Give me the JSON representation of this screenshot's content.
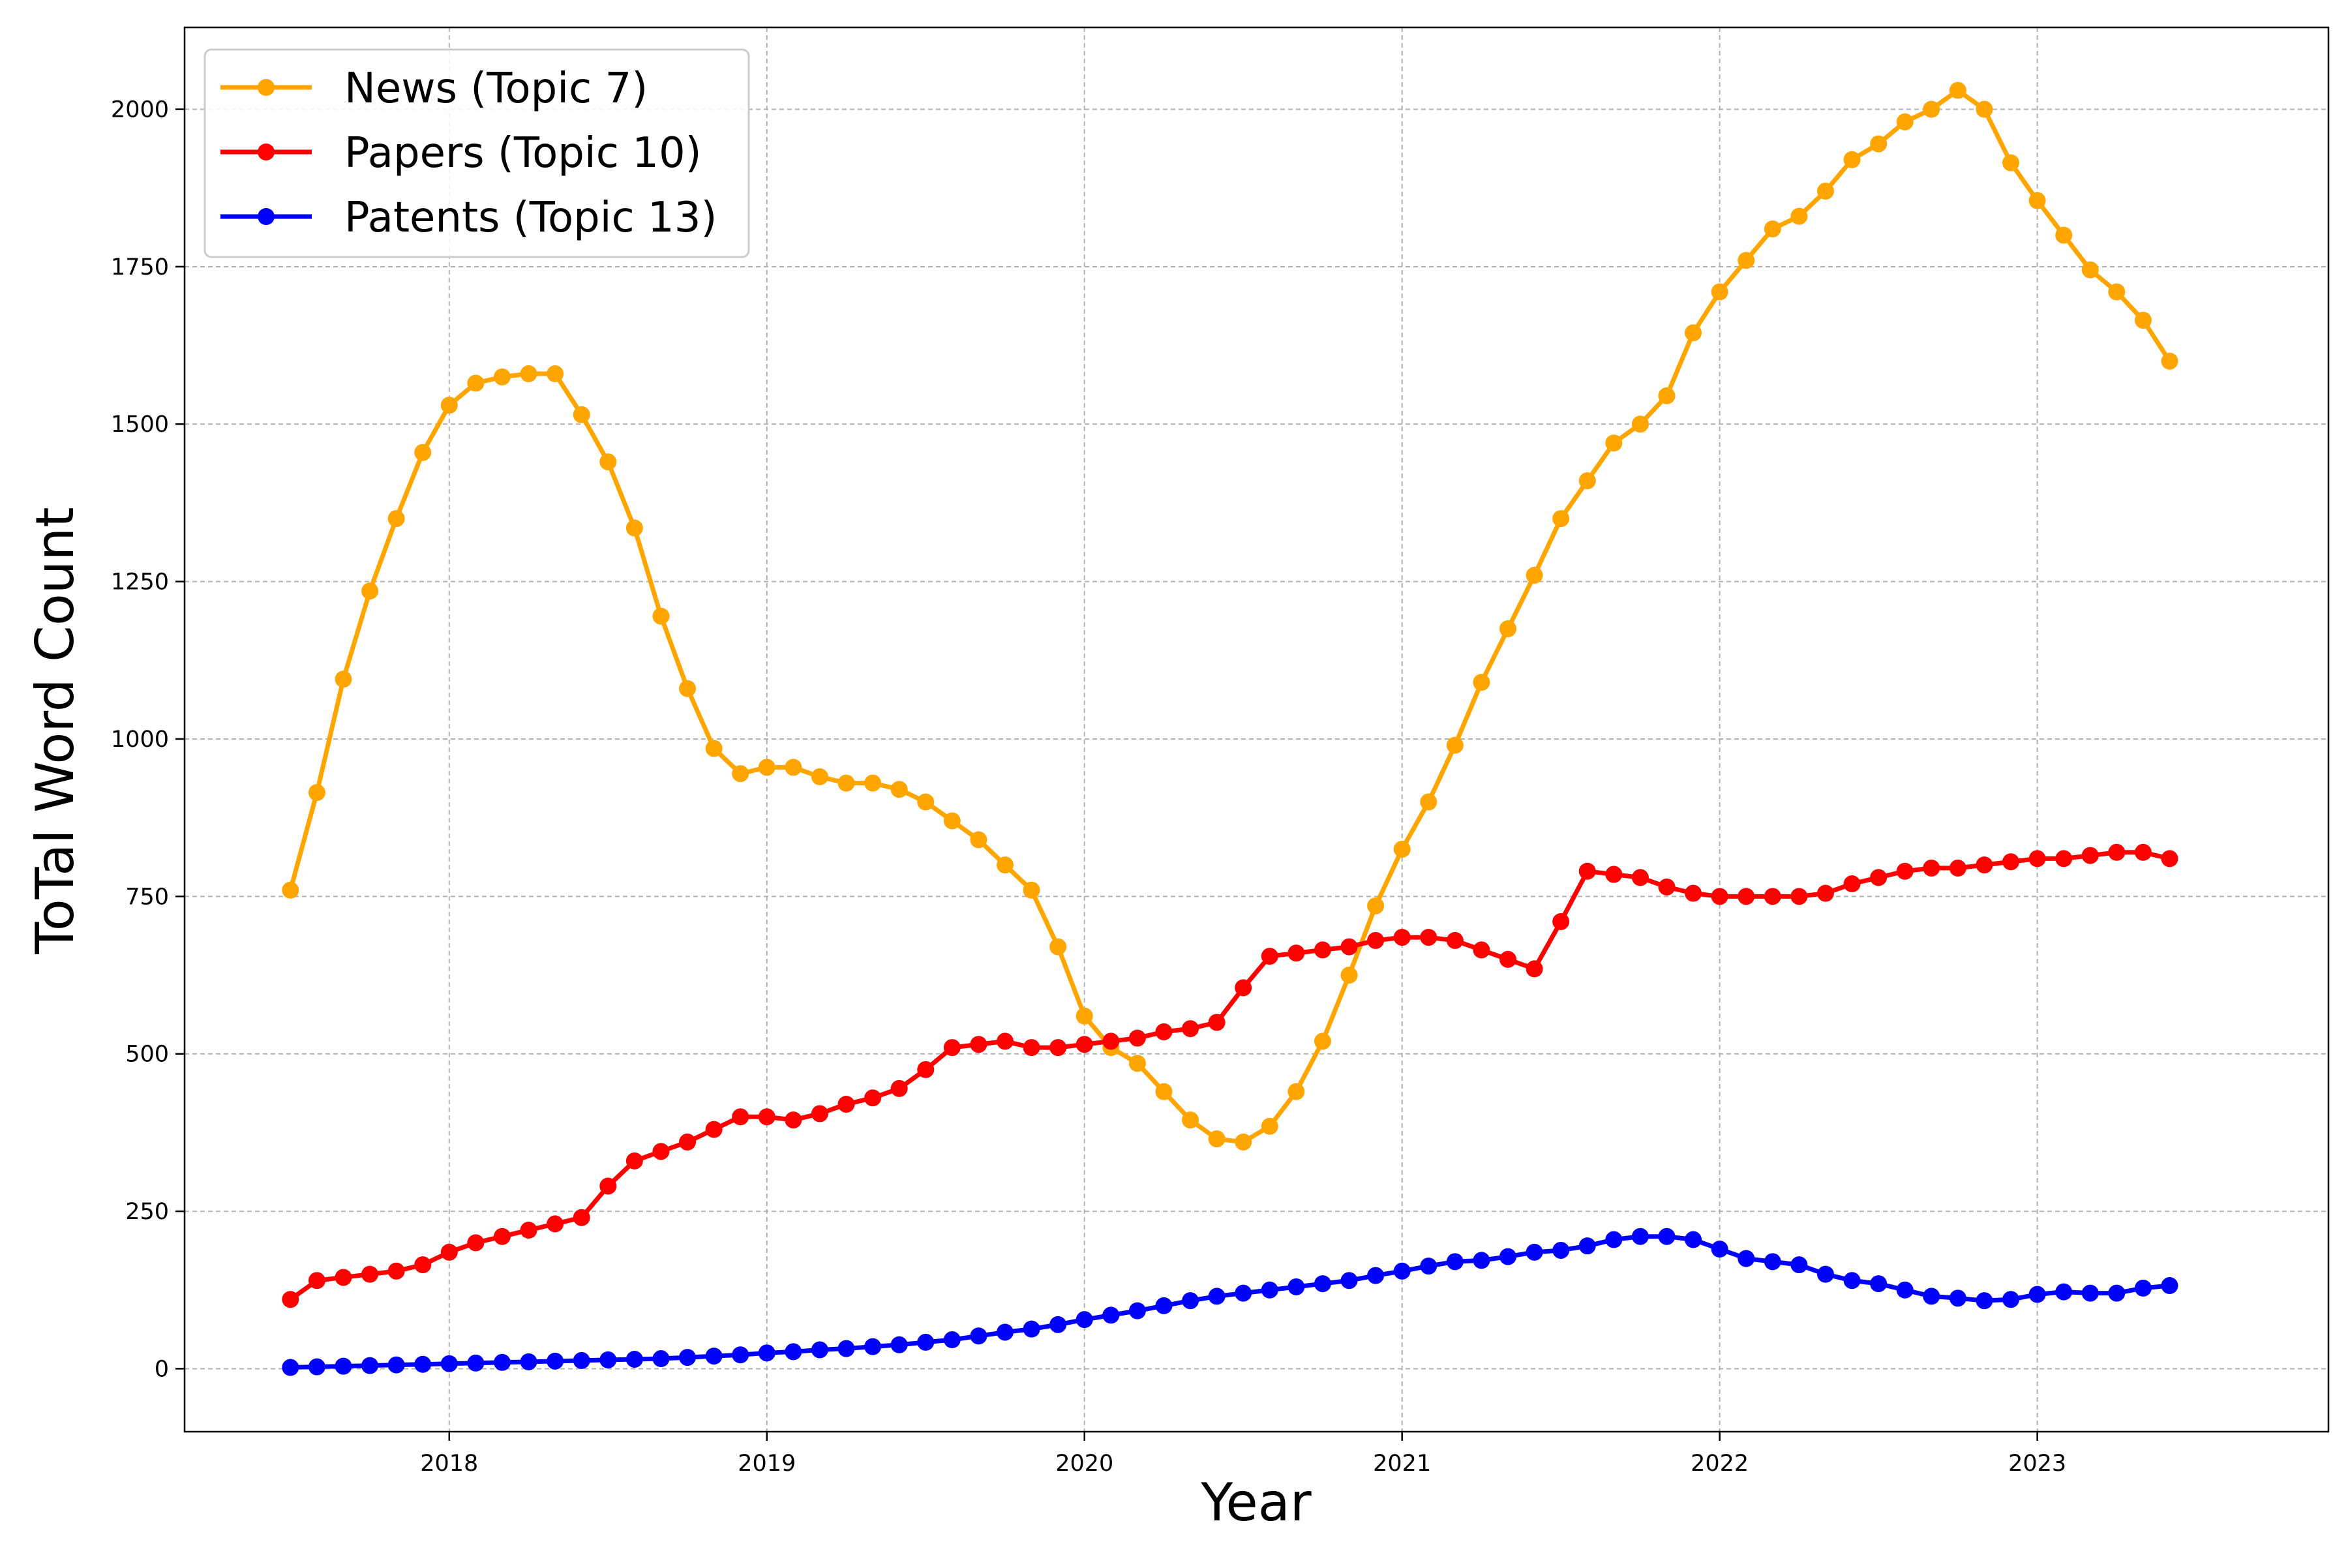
{
  "chart_data": {
    "type": "line",
    "title": "",
    "xlabel": "Year",
    "ylabel": "ToTal Word Count",
    "x_ticks": [
      "2018",
      "2019",
      "2020",
      "2021",
      "2022",
      "2023"
    ],
    "y_ticks": [
      "0",
      "250",
      "500",
      "750",
      "1000",
      "1250",
      "1500",
      "1750",
      "2000"
    ],
    "xlim": [
      "2017-03",
      "2023-12"
    ],
    "ylim": [
      -100,
      2130
    ],
    "grid": true,
    "legend_position": "top-left",
    "x": [
      "2017-07",
      "2017-08",
      "2017-09",
      "2017-10",
      "2017-11",
      "2017-12",
      "2018-01",
      "2018-02",
      "2018-03",
      "2018-04",
      "2018-05",
      "2018-06",
      "2018-07",
      "2018-08",
      "2018-09",
      "2018-10",
      "2018-11",
      "2018-12",
      "2019-01",
      "2019-02",
      "2019-03",
      "2019-04",
      "2019-05",
      "2019-06",
      "2019-07",
      "2019-08",
      "2019-09",
      "2019-10",
      "2019-11",
      "2019-12",
      "2020-01",
      "2020-02",
      "2020-03",
      "2020-04",
      "2020-05",
      "2020-06",
      "2020-07",
      "2020-08",
      "2020-09",
      "2020-10",
      "2020-11",
      "2020-12",
      "2021-01",
      "2021-02",
      "2021-03",
      "2021-04",
      "2021-05",
      "2021-06",
      "2021-07",
      "2021-08",
      "2021-09",
      "2021-10",
      "2021-11",
      "2021-12",
      "2022-01",
      "2022-02",
      "2022-03",
      "2022-04",
      "2022-05",
      "2022-06",
      "2022-07",
      "2022-08",
      "2022-09",
      "2022-10",
      "2022-11",
      "2022-12",
      "2023-01",
      "2023-02",
      "2023-03",
      "2023-04",
      "2023-05",
      "2023-06"
    ],
    "series": [
      {
        "name": "News (Topic 7)",
        "color": "#FFA500",
        "values": [
          760,
          915,
          1095,
          1235,
          1350,
          1455,
          1530,
          1565,
          1575,
          1580,
          1580,
          1515,
          1440,
          1335,
          1195,
          1080,
          985,
          945,
          955,
          955,
          940,
          930,
          930,
          920,
          900,
          870,
          840,
          800,
          760,
          670,
          560,
          510,
          485,
          440,
          395,
          365,
          360,
          385,
          440,
          520,
          625,
          735,
          825,
          900,
          990,
          1090,
          1175,
          1260,
          1350,
          1410,
          1470,
          1500,
          1545,
          1645,
          1710,
          1760,
          1810,
          1830,
          1870,
          1920,
          1945,
          1980,
          2000,
          2030,
          2000,
          1915,
          1855,
          1800,
          1745,
          1710,
          1665,
          1600
        ]
      },
      {
        "name": "Papers (Topic 10)",
        "color": "#FF0000",
        "values": [
          110,
          140,
          145,
          150,
          155,
          165,
          185,
          200,
          210,
          220,
          230,
          240,
          290,
          330,
          345,
          360,
          380,
          400,
          400,
          395,
          405,
          420,
          430,
          445,
          475,
          510,
          515,
          520,
          510,
          510,
          515,
          520,
          525,
          535,
          540,
          550,
          605,
          655,
          660,
          665,
          670,
          680,
          685,
          685,
          680,
          665,
          650,
          635,
          710,
          790,
          785,
          780,
          765,
          755,
          750,
          750,
          750,
          750,
          755,
          770,
          780,
          790,
          795,
          795,
          800,
          805,
          810,
          810,
          815,
          820,
          820,
          810
        ]
      },
      {
        "name": "Patents (Topic 13)",
        "color": "#0000FF",
        "values": [
          2,
          3,
          4,
          5,
          6,
          7,
          8,
          9,
          10,
          11,
          12,
          13,
          14,
          15,
          16,
          18,
          20,
          22,
          25,
          27,
          30,
          32,
          35,
          38,
          42,
          46,
          52,
          58,
          63,
          70,
          78,
          85,
          92,
          100,
          108,
          115,
          120,
          125,
          130,
          135,
          140,
          148,
          155,
          163,
          170,
          172,
          178,
          185,
          188,
          195,
          205,
          210,
          210,
          205,
          190,
          175,
          170,
          165,
          150,
          140,
          135,
          125,
          115,
          112,
          108,
          110,
          118,
          122,
          120,
          120,
          128,
          132
        ]
      }
    ]
  }
}
